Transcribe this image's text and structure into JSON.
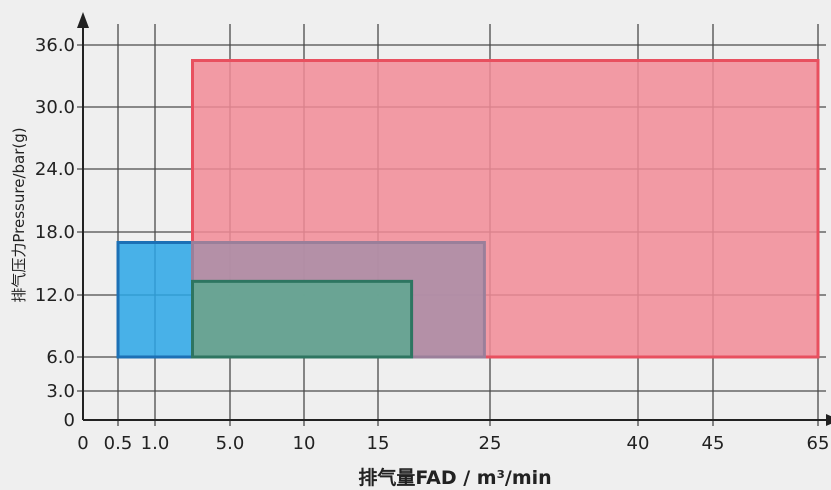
{
  "chart_data": {
    "type": "range-rectangles",
    "title": "",
    "xlabel": "排气量FAD / m³/min",
    "ylabel": "排气压力Pressure/bar(g)",
    "x_ticks": [
      {
        "label": "0",
        "value": 0
      },
      {
        "label": "0.5",
        "value": 0.5
      },
      {
        "label": "1.0",
        "value": 1.0
      },
      {
        "label": "5.0",
        "value": 5.0
      },
      {
        "label": "10",
        "value": 10
      },
      {
        "label": "15",
        "value": 15
      },
      {
        "label": "25",
        "value": 25
      },
      {
        "label": "40",
        "value": 40
      },
      {
        "label": "45",
        "value": 45
      },
      {
        "label": "65",
        "value": 65
      }
    ],
    "x_grid": [
      0.5,
      1.0,
      5.0,
      10,
      15,
      25,
      40,
      45,
      65
    ],
    "y_ticks": [
      {
        "label": "0",
        "value": 0
      },
      {
        "label": "3.0",
        "value": 3.0
      },
      {
        "label": "6.0",
        "value": 6.0
      },
      {
        "label": "12.0",
        "value": 12.0
      },
      {
        "label": "18.0",
        "value": 18.0
      },
      {
        "label": "24.0",
        "value": 24.0
      },
      {
        "label": "30.0",
        "value": 30.0
      },
      {
        "label": "36.0",
        "value": 36.0
      }
    ],
    "grid": true,
    "ranges": [
      {
        "color": "#f28b96",
        "stroke": "#e8505f",
        "x": [
          3,
          65
        ],
        "y": [
          6,
          34.5
        ]
      },
      {
        "color": "#2aa6e6",
        "stroke": "#1c70b5",
        "x": [
          0.5,
          3
        ],
        "y": [
          6,
          17
        ]
      },
      {
        "color": "#a98ea8",
        "stroke": "#9a7f9a",
        "x": [
          3,
          24.5
        ],
        "y": [
          6,
          17
        ]
      },
      {
        "color": "#5da890",
        "stroke": "#2e7561",
        "x": [
          3,
          18
        ],
        "y": [
          6,
          13.3
        ]
      }
    ]
  }
}
